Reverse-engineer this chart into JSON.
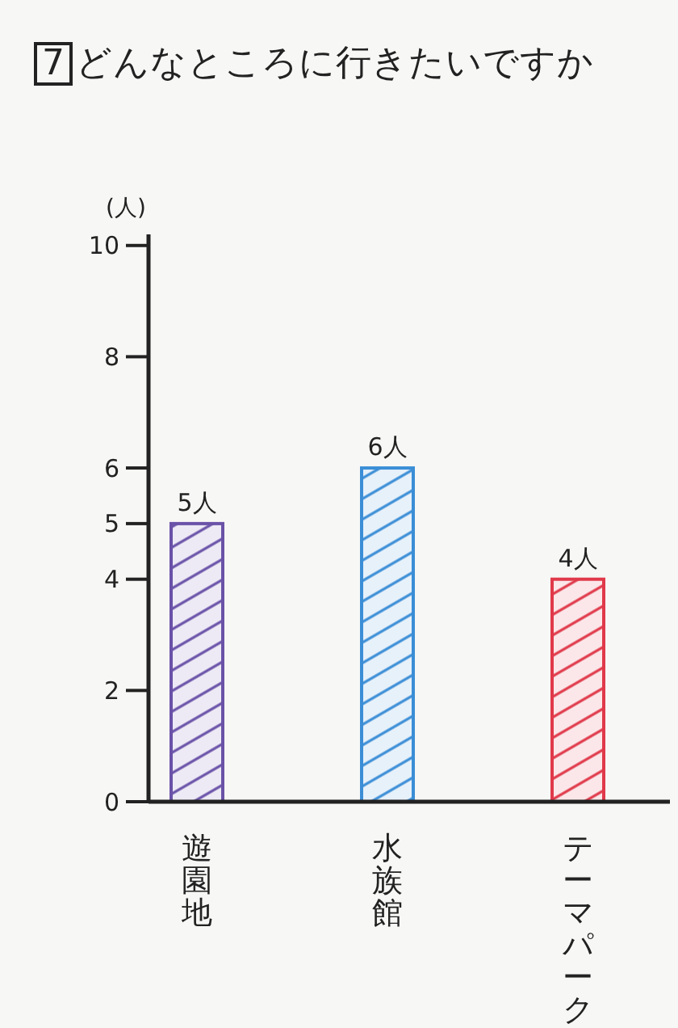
{
  "chart_data": {
    "type": "bar",
    "title": "7 どんなところに行きたいですか",
    "ylabel": "(人)",
    "categories": [
      "遊園地",
      "水族館",
      "テーマパーク"
    ],
    "values": [
      5,
      6,
      4
    ],
    "colors": [
      "#6a52a8",
      "#3b8ed6",
      "#e0394a"
    ],
    "value_labels": [
      "5人",
      "6人",
      "4人"
    ],
    "ylim": [
      0,
      10.2
    ],
    "yticks": [
      0,
      2,
      4,
      5,
      6,
      8,
      10
    ]
  }
}
